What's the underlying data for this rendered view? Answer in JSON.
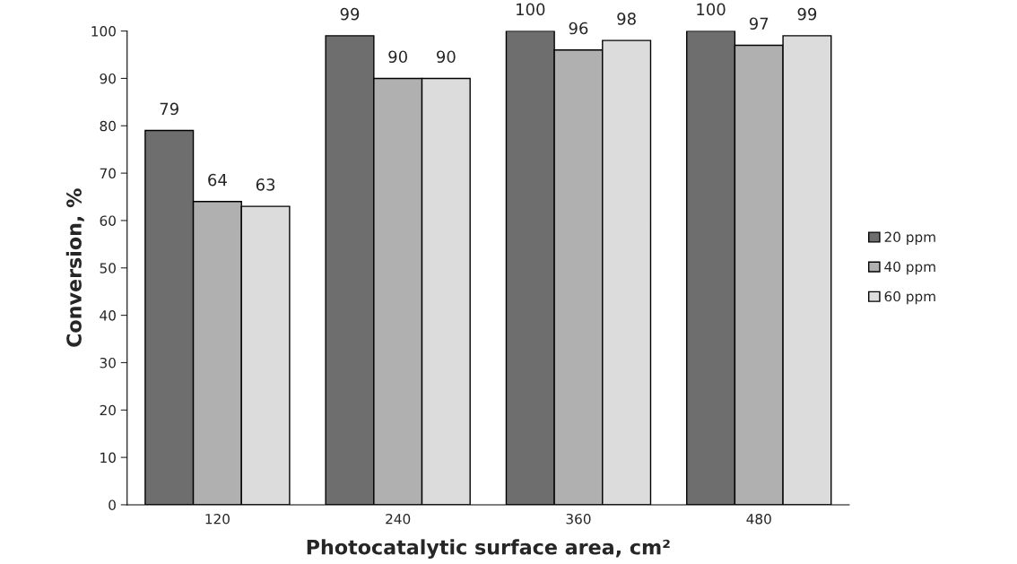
{
  "chart_data": {
    "type": "bar",
    "xlabel": "Photocatalytic surface area, cm²",
    "ylabel": "Conversion, %",
    "categories": [
      "120",
      "240",
      "360",
      "480"
    ],
    "series": [
      {
        "name": "20 ppm",
        "color": "#6e6e6e",
        "values": [
          79,
          99,
          100,
          100
        ]
      },
      {
        "name": "40 ppm",
        "color": "#b0b0b0",
        "values": [
          64,
          90,
          96,
          97
        ]
      },
      {
        "name": "60 ppm",
        "color": "#dcdcdc",
        "values": [
          63,
          90,
          98,
          99
        ]
      }
    ],
    "ylim": [
      0,
      100
    ],
    "yticks": [
      0,
      10,
      20,
      30,
      40,
      50,
      60,
      70,
      80,
      90,
      100
    ],
    "data_labels": true,
    "grid": false,
    "legend": "right"
  }
}
